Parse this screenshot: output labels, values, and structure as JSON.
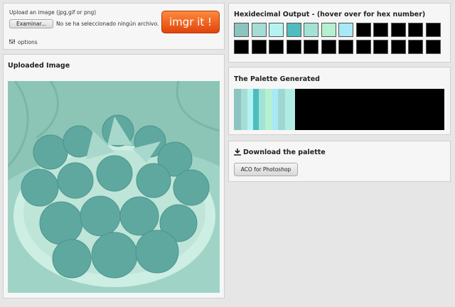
{
  "upload": {
    "label": "Upload an image (jpg,gif or png)",
    "browse_button": "Examinar...",
    "file_status": "No se ha seleccionado ningún archivo.",
    "submit_button": "imgr it !",
    "options": "options"
  },
  "uploaded_image": {
    "title": "Uploaded Image"
  },
  "hex_output": {
    "title": "Hexidecimal Output - (hover over for hex number)",
    "swatches": [
      "#8cc4c0",
      "#a6dcd6",
      "#b5f3f3",
      "#4fbcbf",
      "#a3e3d6",
      "#b5f0d0",
      "#a6e9f7",
      "#000000",
      "#000000",
      "#000000",
      "#000000",
      "#000000",
      "#000000",
      "#000000",
      "#000000",
      "#000000",
      "#000000",
      "#000000",
      "#000000",
      "#000000",
      "#000000",
      "#000000",
      "#000000",
      "#000000"
    ]
  },
  "palette": {
    "title": "The Palette Generated"
  },
  "download": {
    "title": "Download the palette",
    "button": "ACO for Photoshop"
  }
}
